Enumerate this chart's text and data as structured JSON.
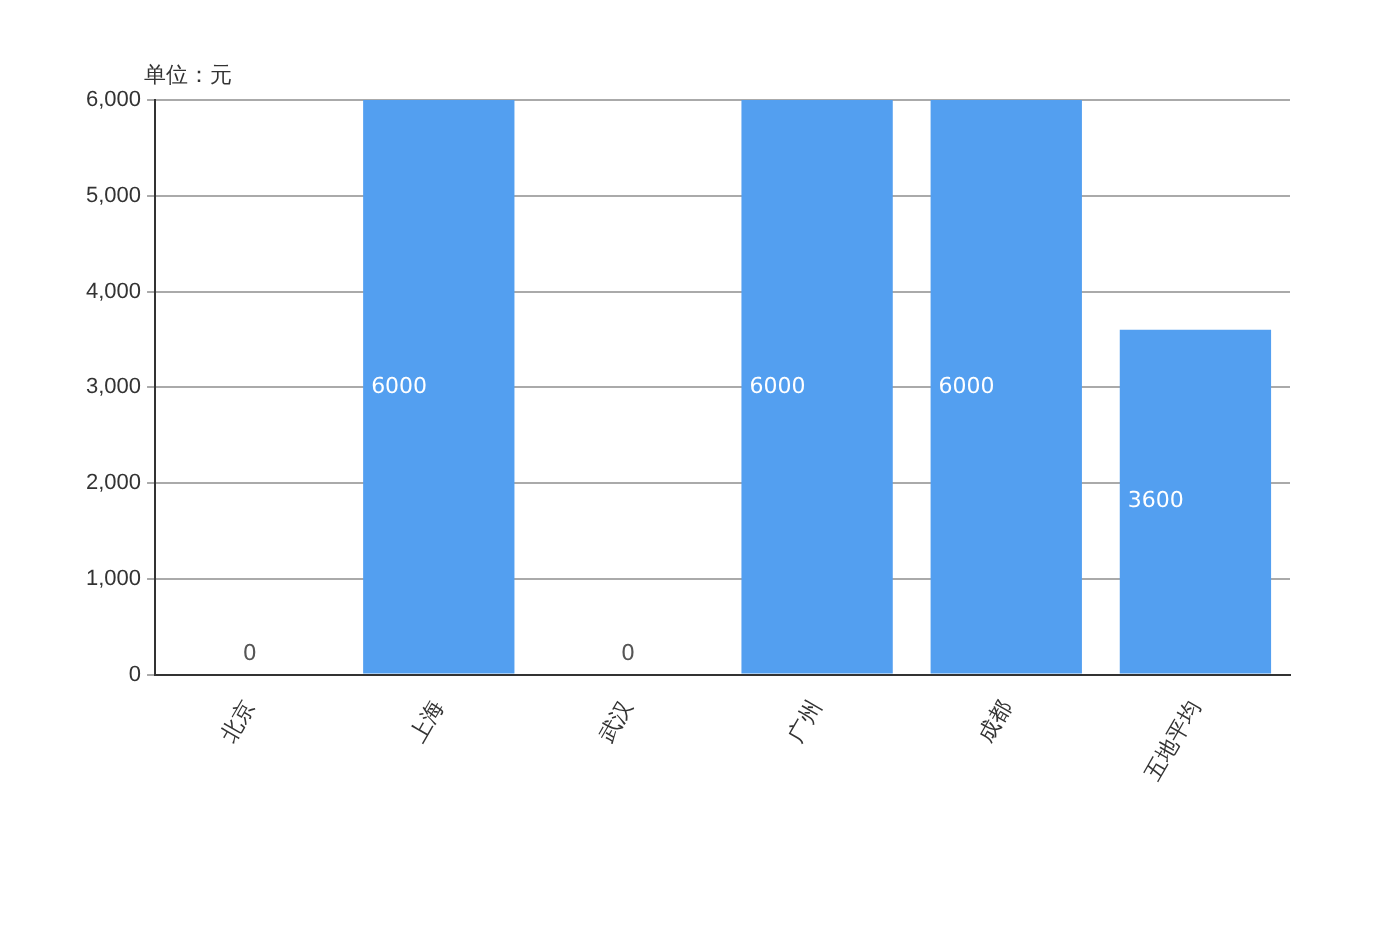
{
  "chart_data": {
    "type": "bar",
    "ylabel": "单位：元",
    "categories": [
      "北京",
      "上海",
      "武汉",
      "广州",
      "成都",
      "五地平均"
    ],
    "series": [
      {
        "color": "#539ff0",
        "values": [
          0,
          6000,
          0,
          6000,
          6000,
          3600
        ]
      }
    ],
    "ylim": [
      0,
      6000
    ],
    "yticks": [
      {
        "value": 0,
        "label": "0"
      },
      {
        "value": 1000,
        "label": "1,000"
      },
      {
        "value": 2000,
        "label": "2,000"
      },
      {
        "value": 3000,
        "label": "3,000"
      },
      {
        "value": 4000,
        "label": "4,000"
      },
      {
        "value": 5000,
        "label": "5,000"
      },
      {
        "value": 6000,
        "label": "6,000"
      }
    ],
    "grid": "y",
    "data_labels": true
  }
}
